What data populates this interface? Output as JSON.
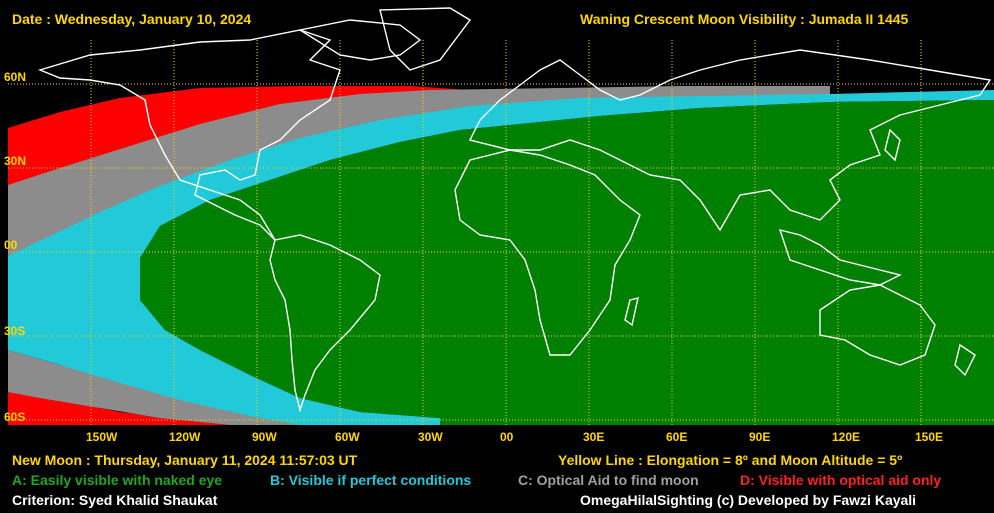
{
  "header": {
    "date": "Date : Wednesday, January 10, 2024",
    "title": "Waning Crescent Moon Visibility : Jumada II 1445"
  },
  "lat_labels": [
    "60N",
    "30N",
    "00",
    "30S",
    "60S"
  ],
  "lon_labels": [
    "150W",
    "120W",
    "90W",
    "60W",
    "30W",
    "00",
    "30E",
    "60E",
    "90E",
    "120E",
    "150E"
  ],
  "footer": {
    "new_moon": "New Moon : Thursday, January 11, 2024  11:57:03  UT",
    "yellow_line": "Yellow Line : Elongation = 8º and Moon Altitude = 5º",
    "legend_a": "A: Easily visible with naked eye",
    "legend_b": "B: Visible if perfect conditions",
    "legend_c": "C: Optical Aid to find moon",
    "legend_d": "D: Visible with optical aid only",
    "criterion": "Criterion: Syed Khalid Shaukat",
    "credit": "OmegaHilalSighting  (c)  Developed by Fawzi Kayali"
  },
  "colors": {
    "zone_a": "#008000",
    "zone_b": "#22c9d8",
    "zone_c": "#8c8c8c",
    "zone_d": "#ff0000",
    "grid": "#ffd700",
    "coast": "#ffffff"
  }
}
